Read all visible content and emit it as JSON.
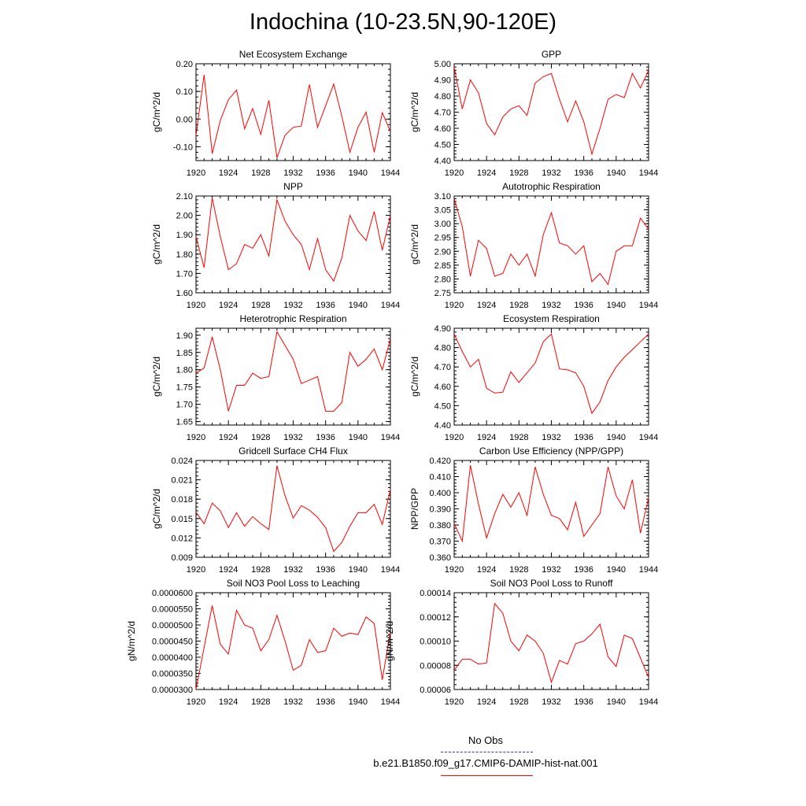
{
  "title": "Indochina (10-23.5N,90-120E)",
  "series_color": "#ff0000",
  "legend": {
    "obs_label": "No Obs",
    "obs_color": "#3333cc",
    "model_label": "b.e21.B1850.f09_g17.CMIP6-DAMIP-hist-nat.001",
    "model_color": "#ff0000"
  },
  "chart_data": [
    {
      "type": "line",
      "title": "Net Ecosystem Exchange",
      "ylabel": "gC/m^2/d",
      "xlim": [
        1920,
        1944
      ],
      "xticks": [
        1920,
        1924,
        1928,
        1932,
        1936,
        1940,
        1944
      ],
      "ylim": [
        -0.15,
        0.2
      ],
      "yticks": [
        "-0.10",
        "0.00",
        "0.10",
        "0.20"
      ],
      "x": [
        1920,
        1921,
        1922,
        1923,
        1924,
        1925,
        1926,
        1927,
        1928,
        1929,
        1930,
        1931,
        1932,
        1933,
        1934,
        1935,
        1936,
        1937,
        1938,
        1939,
        1940,
        1941,
        1942,
        1943,
        1944
      ],
      "values": [
        -0.06,
        0.16,
        -0.125,
        -0.005,
        0.07,
        0.105,
        -0.035,
        0.038,
        -0.055,
        0.068,
        -0.14,
        -0.058,
        -0.03,
        -0.025,
        0.125,
        -0.03,
        0.048,
        0.127,
        0.01,
        -0.12,
        -0.03,
        0.025,
        -0.12,
        0.023,
        -0.045
      ]
    },
    {
      "type": "line",
      "title": "GPP",
      "ylabel": "gC/m^2/d",
      "xlim": [
        1920,
        1944
      ],
      "xticks": [
        1920,
        1924,
        1928,
        1932,
        1936,
        1940,
        1944
      ],
      "ylim": [
        4.4,
        5.0
      ],
      "yticks": [
        "4.40",
        "4.50",
        "4.60",
        "4.70",
        "4.80",
        "4.90",
        "5.00"
      ],
      "x": [
        1920,
        1921,
        1922,
        1923,
        1924,
        1925,
        1926,
        1927,
        1928,
        1929,
        1930,
        1931,
        1932,
        1933,
        1934,
        1935,
        1936,
        1937,
        1938,
        1939,
        1940,
        1941,
        1942,
        1943,
        1944
      ],
      "values": [
        4.98,
        4.72,
        4.9,
        4.82,
        4.63,
        4.56,
        4.67,
        4.72,
        4.74,
        4.68,
        4.88,
        4.92,
        4.94,
        4.78,
        4.64,
        4.77,
        4.64,
        4.44,
        4.6,
        4.78,
        4.81,
        4.79,
        4.94,
        4.85,
        4.96
      ]
    },
    {
      "type": "line",
      "title": "NPP",
      "ylabel": "gC/m^2/d",
      "xlim": [
        1920,
        1944
      ],
      "xticks": [
        1920,
        1924,
        1928,
        1932,
        1936,
        1940,
        1944
      ],
      "ylim": [
        1.6,
        2.1
      ],
      "yticks": [
        "1.60",
        "1.70",
        "1.80",
        "1.90",
        "2.00",
        "2.10"
      ],
      "x": [
        1920,
        1921,
        1922,
        1923,
        1924,
        1925,
        1926,
        1927,
        1928,
        1929,
        1930,
        1931,
        1932,
        1933,
        1934,
        1935,
        1936,
        1937,
        1938,
        1939,
        1940,
        1941,
        1942,
        1943,
        1944
      ],
      "values": [
        1.89,
        1.73,
        2.09,
        1.89,
        1.72,
        1.75,
        1.85,
        1.83,
        1.9,
        1.79,
        2.08,
        1.97,
        1.9,
        1.85,
        1.72,
        1.88,
        1.72,
        1.66,
        1.78,
        2.0,
        1.92,
        1.87,
        2.02,
        1.82,
        2.0
      ]
    },
    {
      "type": "line",
      "title": "Autotrophic Respiration",
      "ylabel": "gC/m^2/d",
      "xlim": [
        1920,
        1944
      ],
      "xticks": [
        1920,
        1924,
        1928,
        1932,
        1936,
        1940,
        1944
      ],
      "ylim": [
        2.75,
        3.1
      ],
      "yticks": [
        "2.75",
        "2.80",
        "2.85",
        "2.90",
        "2.95",
        "3.00",
        "3.05",
        "3.10"
      ],
      "x": [
        1920,
        1921,
        1922,
        1923,
        1924,
        1925,
        1926,
        1927,
        1928,
        1929,
        1930,
        1931,
        1932,
        1933,
        1934,
        1935,
        1936,
        1937,
        1938,
        1939,
        1940,
        1941,
        1942,
        1943,
        1944
      ],
      "values": [
        3.09,
        2.99,
        2.81,
        2.94,
        2.91,
        2.81,
        2.82,
        2.89,
        2.85,
        2.89,
        2.81,
        2.96,
        3.04,
        2.93,
        2.92,
        2.89,
        2.92,
        2.79,
        2.82,
        2.78,
        2.9,
        2.92,
        2.92,
        3.02,
        2.98
      ]
    },
    {
      "type": "line",
      "title": "Heterotrophic Respiration",
      "ylabel": "gC/m^2/d",
      "xlim": [
        1920,
        1944
      ],
      "xticks": [
        1920,
        1924,
        1928,
        1932,
        1936,
        1940,
        1944
      ],
      "ylim": [
        1.64,
        1.92
      ],
      "yticks": [
        "1.65",
        "1.70",
        "1.75",
        "1.80",
        "1.85",
        "1.90"
      ],
      "x": [
        1920,
        1921,
        1922,
        1923,
        1924,
        1925,
        1926,
        1927,
        1928,
        1929,
        1930,
        1931,
        1932,
        1933,
        1934,
        1935,
        1936,
        1937,
        1938,
        1939,
        1940,
        1941,
        1942,
        1943,
        1944
      ],
      "values": [
        1.79,
        1.805,
        1.895,
        1.8,
        1.68,
        1.755,
        1.755,
        1.79,
        1.775,
        1.78,
        1.91,
        1.87,
        1.83,
        1.76,
        1.77,
        1.78,
        1.68,
        1.68,
        1.705,
        1.85,
        1.81,
        1.83,
        1.86,
        1.8,
        1.89
      ]
    },
    {
      "type": "line",
      "title": "Ecosystem Respiration",
      "ylabel": "gC/m^2/d",
      "xlim": [
        1920,
        1944
      ],
      "xticks": [
        1920,
        1924,
        1928,
        1932,
        1936,
        1940,
        1944
      ],
      "ylim": [
        4.4,
        4.9
      ],
      "yticks": [
        "4.40",
        "4.50",
        "4.60",
        "4.70",
        "4.80",
        "4.90"
      ],
      "x": [
        1920,
        1921,
        1922,
        1923,
        1924,
        1925,
        1926,
        1927,
        1928,
        1929,
        1930,
        1931,
        1932,
        1933,
        1934,
        1935,
        1936,
        1937,
        1938,
        1939,
        1940,
        1941,
        1942,
        1943,
        1944
      ],
      "values": [
        4.87,
        4.78,
        4.7,
        4.74,
        4.59,
        4.565,
        4.57,
        4.675,
        4.62,
        4.67,
        4.72,
        4.83,
        4.87,
        4.69,
        4.685,
        4.67,
        4.6,
        4.46,
        4.52,
        4.63,
        4.7,
        4.75,
        4.79,
        4.83,
        4.87
      ]
    },
    {
      "type": "line",
      "title": "Gridcell Surface CH4 Flux",
      "ylabel": "gC/m^2/d",
      "xlim": [
        1920,
        1944
      ],
      "xticks": [
        1920,
        1924,
        1928,
        1932,
        1936,
        1940,
        1944
      ],
      "ylim": [
        0.009,
        0.024
      ],
      "yticks": [
        "0.009",
        "0.012",
        "0.015",
        "0.018",
        "0.021",
        "0.024"
      ],
      "x": [
        1920,
        1921,
        1922,
        1923,
        1924,
        1925,
        1926,
        1927,
        1928,
        1929,
        1930,
        1931,
        1932,
        1933,
        1934,
        1935,
        1936,
        1937,
        1938,
        1939,
        1940,
        1941,
        1942,
        1943,
        1944
      ],
      "values": [
        0.016,
        0.0142,
        0.0174,
        0.0162,
        0.0136,
        0.0159,
        0.0138,
        0.0153,
        0.0142,
        0.0133,
        0.0232,
        0.0185,
        0.0151,
        0.017,
        0.0163,
        0.0152,
        0.0136,
        0.0099,
        0.0113,
        0.0138,
        0.0159,
        0.0159,
        0.0172,
        0.0141,
        0.0195
      ]
    },
    {
      "type": "line",
      "title": "Carbon Use Efficiency (NPP/GPP)",
      "ylabel": "NPP/GPP",
      "xlim": [
        1920,
        1944
      ],
      "xticks": [
        1920,
        1924,
        1928,
        1932,
        1936,
        1940,
        1944
      ],
      "ylim": [
        0.36,
        0.42
      ],
      "yticks": [
        "0.360",
        "0.370",
        "0.380",
        "0.390",
        "0.400",
        "0.410",
        "0.420"
      ],
      "x": [
        1920,
        1921,
        1922,
        1923,
        1924,
        1925,
        1926,
        1927,
        1928,
        1929,
        1930,
        1931,
        1932,
        1933,
        1934,
        1935,
        1936,
        1937,
        1938,
        1939,
        1940,
        1941,
        1942,
        1943,
        1944
      ],
      "values": [
        0.381,
        0.37,
        0.417,
        0.393,
        0.372,
        0.387,
        0.399,
        0.391,
        0.4,
        0.386,
        0.416,
        0.399,
        0.386,
        0.384,
        0.377,
        0.394,
        0.373,
        0.38,
        0.387,
        0.416,
        0.398,
        0.39,
        0.408,
        0.375,
        0.397
      ]
    },
    {
      "type": "line",
      "title": "Soil NO3 Pool Loss to Leaching",
      "ylabel": "gN/m^2/d",
      "xlim": [
        1920,
        1944
      ],
      "xticks": [
        1920,
        1924,
        1928,
        1932,
        1936,
        1940,
        1944
      ],
      "ylim": [
        3e-05,
        6e-05
      ],
      "yticks": [
        "0.0000300",
        "0.0000350",
        "0.0000400",
        "0.0000450",
        "0.0000500",
        "0.0000550",
        "0.0000600"
      ],
      "x": [
        1920,
        1921,
        1922,
        1923,
        1924,
        1925,
        1926,
        1927,
        1928,
        1929,
        1930,
        1931,
        1932,
        1933,
        1934,
        1935,
        1936,
        1937,
        1938,
        1939,
        1940,
        1941,
        1942,
        1943,
        1944
      ],
      "values": [
        3e-05,
        4.3e-05,
        5.6e-05,
        4.4e-05,
        4.1e-05,
        5.45e-05,
        5e-05,
        4.9e-05,
        4.2e-05,
        4.55e-05,
        5.3e-05,
        4.5e-05,
        3.6e-05,
        3.75e-05,
        4.55e-05,
        4.15e-05,
        4.2e-05,
        4.9e-05,
        4.65e-05,
        4.75e-05,
        4.7e-05,
        5.25e-05,
        5.05e-05,
        3.3e-05,
        4.8e-05
      ]
    },
    {
      "type": "line",
      "title": "Soil NO3 Pool Loss to Runoff",
      "ylabel": "gN/m^2/d",
      "xlim": [
        1920,
        1944
      ],
      "xticks": [
        1920,
        1924,
        1928,
        1932,
        1936,
        1940,
        1944
      ],
      "ylim": [
        6e-05,
        0.00014
      ],
      "yticks": [
        "0.00006",
        "0.00008",
        "0.00010",
        "0.00012",
        "0.00014"
      ],
      "x": [
        1920,
        1921,
        1922,
        1923,
        1924,
        1925,
        1926,
        1927,
        1928,
        1929,
        1930,
        1931,
        1932,
        1933,
        1934,
        1935,
        1936,
        1937,
        1938,
        1939,
        1940,
        1941,
        1942,
        1943,
        1944
      ],
      "values": [
        7.6e-05,
        8.5e-05,
        8.5e-05,
        8.1e-05,
        8.2e-05,
        0.000131,
        0.000123,
        0.0001,
        9.2e-05,
        0.000105,
        0.0001,
        9e-05,
        6.6e-05,
        8.4e-05,
        8.1e-05,
        9.8e-05,
        0.0001,
        0.000106,
        0.000114,
        8.7e-05,
        7.9e-05,
        0.000105,
        0.000102,
        8.6e-05,
        7e-05
      ]
    }
  ]
}
